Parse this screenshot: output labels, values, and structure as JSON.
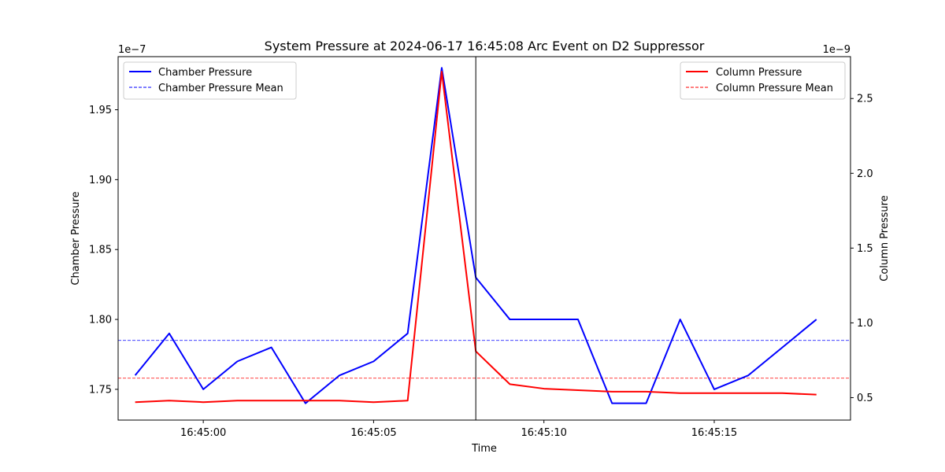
{
  "chart_data": {
    "type": "line",
    "title": "System Pressure at 2024-06-17 16:45:08 Arc Event on D2 Suppressor",
    "xlabel": "Time",
    "ylabel_left": "Chamber Pressure",
    "ylabel_right": "Column Pressure",
    "left_multiplier": "1e−7",
    "right_multiplier": "1e−9",
    "x": [
      "16:44:58",
      "16:44:59",
      "16:45:00",
      "16:45:01",
      "16:45:02",
      "16:45:03",
      "16:45:04",
      "16:45:05",
      "16:45:06",
      "16:45:07",
      "16:45:08",
      "16:45:09",
      "16:45:10",
      "16:45:11",
      "16:45:12",
      "16:45:13",
      "16:45:14",
      "16:45:15",
      "16:45:16",
      "16:45:17",
      "16:45:18"
    ],
    "xlim": [
      "16:44:57.5",
      "16:45:19.0"
    ],
    "x_ticks": [
      {
        "label": "16:45:00",
        "value": "16:45:00"
      },
      {
        "label": "16:45:05",
        "value": "16:45:05"
      },
      {
        "label": "16:45:10",
        "value": "16:45:10"
      },
      {
        "label": "16:45:15",
        "value": "16:45:15"
      }
    ],
    "left_axis": {
      "ylim": [
        1.728,
        1.988
      ],
      "ticks": [
        {
          "label": "1.75",
          "value": 1.75
        },
        {
          "label": "1.80",
          "value": 1.8
        },
        {
          "label": "1.85",
          "value": 1.85
        },
        {
          "label": "1.90",
          "value": 1.9
        },
        {
          "label": "1.95",
          "value": 1.95
        }
      ]
    },
    "right_axis": {
      "ylim": [
        0.35,
        2.78
      ],
      "ticks": [
        {
          "label": "0.5",
          "value": 0.5
        },
        {
          "label": "1.0",
          "value": 1.0
        },
        {
          "label": "1.5",
          "value": 1.5
        },
        {
          "label": "2.0",
          "value": 2.0
        },
        {
          "label": "2.5",
          "value": 2.5
        }
      ]
    },
    "event_marker": {
      "x": "16:45:08",
      "color": "#000000"
    },
    "series": [
      {
        "name": "Chamber Pressure",
        "axis": "left",
        "color": "#0000ff",
        "style": "solid",
        "values": [
          1.76,
          1.79,
          1.75,
          1.77,
          1.78,
          1.74,
          1.76,
          1.77,
          1.79,
          1.98,
          1.83,
          1.8,
          1.8,
          1.8,
          1.74,
          1.74,
          1.8,
          1.75,
          1.76,
          1.78,
          1.8
        ]
      },
      {
        "name": "Column Pressure",
        "axis": "right",
        "color": "#ff0000",
        "style": "solid",
        "values": [
          0.47,
          0.48,
          0.47,
          0.48,
          0.48,
          0.48,
          0.48,
          0.47,
          0.48,
          2.68,
          0.81,
          0.59,
          0.56,
          0.55,
          0.54,
          0.54,
          0.53,
          0.53,
          0.53,
          0.53,
          0.52
        ]
      }
    ],
    "mean_lines": [
      {
        "name": "Chamber Pressure Mean",
        "axis": "left",
        "value": 1.785,
        "color": "#0000ff",
        "style": "dashed"
      },
      {
        "name": "Column Pressure Mean",
        "axis": "right",
        "value": 0.63,
        "color": "#ff0000",
        "style": "dashed"
      }
    ],
    "legends": [
      {
        "placement": "top-left",
        "entries": [
          "Chamber Pressure",
          "Chamber Pressure Mean"
        ]
      },
      {
        "placement": "top-right",
        "entries": [
          "Column Pressure",
          "Column Pressure Mean"
        ]
      }
    ],
    "grid": false
  }
}
